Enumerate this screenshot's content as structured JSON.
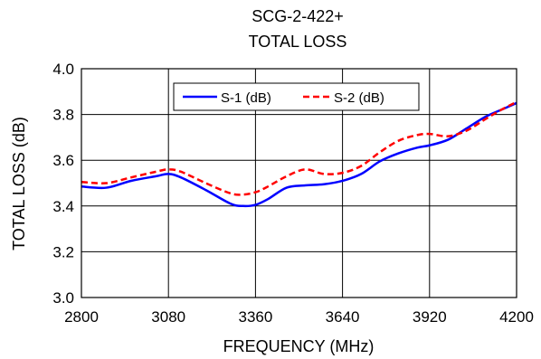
{
  "chart_data": {
    "type": "line",
    "title": "SCG-2-422+",
    "subtitle": "TOTAL  LOSS",
    "xlabel": "FREQUENCY (MHz)",
    "ylabel": "TOTAL  LOSS (dB)",
    "xlim": [
      2800,
      4200
    ],
    "ylim": [
      3.0,
      4.0
    ],
    "x_ticks": [
      2800,
      3080,
      3360,
      3640,
      3920,
      4200
    ],
    "y_ticks": [
      "3.0",
      "3.2",
      "3.4",
      "3.6",
      "3.8",
      "4.0"
    ],
    "grid": true,
    "legend_position": "top-center",
    "series": [
      {
        "name": "S-1 (dB)",
        "color": "#0000ff",
        "dash": "solid",
        "x": [
          2800,
          2880,
          2960,
          3040,
          3080,
          3120,
          3200,
          3280,
          3320,
          3360,
          3400,
          3460,
          3520,
          3580,
          3640,
          3700,
          3760,
          3820,
          3880,
          3920,
          3980,
          4040,
          4100,
          4150,
          4200
        ],
        "y": [
          3.485,
          3.48,
          3.51,
          3.53,
          3.54,
          3.525,
          3.47,
          3.41,
          3.4,
          3.405,
          3.43,
          3.48,
          3.49,
          3.495,
          3.51,
          3.54,
          3.595,
          3.63,
          3.655,
          3.665,
          3.69,
          3.74,
          3.79,
          3.82,
          3.85
        ]
      },
      {
        "name": "S-2 (dB)",
        "color": "#ff0000",
        "dash": "dashed",
        "x": [
          2800,
          2880,
          2960,
          3040,
          3080,
          3120,
          3200,
          3280,
          3320,
          3360,
          3400,
          3460,
          3520,
          3580,
          3640,
          3700,
          3760,
          3820,
          3880,
          3920,
          3980,
          4040,
          4100,
          4150,
          4200
        ],
        "y": [
          3.505,
          3.5,
          3.525,
          3.55,
          3.56,
          3.55,
          3.5,
          3.455,
          3.45,
          3.46,
          3.485,
          3.53,
          3.56,
          3.54,
          3.545,
          3.575,
          3.635,
          3.685,
          3.71,
          3.715,
          3.705,
          3.73,
          3.78,
          3.82,
          3.855
        ]
      }
    ]
  }
}
